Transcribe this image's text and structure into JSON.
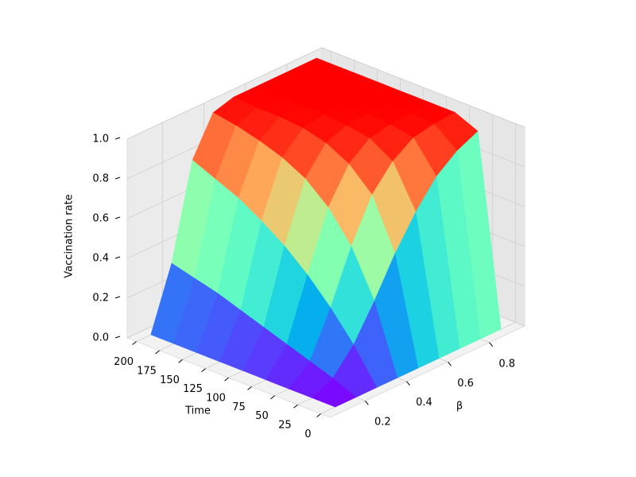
{
  "chart_data": {
    "type": "surface",
    "xlabel": "β",
    "ylabel": "Time",
    "zlabel": "Vaccination rate",
    "x": [
      0.1,
      0.2,
      0.3,
      0.4,
      0.5,
      0.6,
      0.7,
      0.8,
      0.9
    ],
    "y": [
      0,
      25,
      50,
      75,
      100,
      125,
      150,
      175,
      200
    ],
    "z": [
      [
        0,
        0,
        0,
        0,
        0,
        0,
        0,
        0,
        0
      ],
      [
        0,
        0.05,
        0.17,
        0.34,
        0.53,
        0.69,
        0.82,
        0.9,
        0.95
      ],
      [
        0,
        0.09,
        0.31,
        0.57,
        0.78,
        0.9,
        0.97,
        0.99,
        1.0
      ],
      [
        0,
        0.13,
        0.43,
        0.72,
        0.89,
        0.97,
        0.99,
        1.0,
        1.0
      ],
      [
        0,
        0.17,
        0.53,
        0.82,
        0.95,
        0.99,
        1.0,
        1.0,
        1.0
      ],
      [
        0,
        0.21,
        0.61,
        0.88,
        0.98,
        1.0,
        1.0,
        1.0,
        1.0
      ],
      [
        0,
        0.25,
        0.68,
        0.92,
        0.99,
        1.0,
        1.0,
        1.0,
        1.0
      ],
      [
        0,
        0.28,
        0.73,
        0.95,
        0.99,
        1.0,
        1.0,
        1.0,
        1.0
      ],
      [
        0,
        0.31,
        0.78,
        0.97,
        1.0,
        1.0,
        1.0,
        1.0,
        1.0
      ]
    ],
    "xlim": [
      0.03,
      0.97
    ],
    "ylim": [
      -10,
      210
    ],
    "zlim": [
      0,
      1
    ],
    "xticks": [
      0.2,
      0.4,
      0.6,
      0.8
    ],
    "yticks": [
      0,
      25,
      50,
      75,
      100,
      125,
      150,
      175,
      200
    ],
    "zticks": [
      {
        "value": 0,
        "label": "0.0"
      },
      0.2,
      0.4,
      0.6,
      0.8,
      {
        "value": 1,
        "label": "1.0"
      }
    ],
    "colormap": "rainbow",
    "grid": true
  }
}
